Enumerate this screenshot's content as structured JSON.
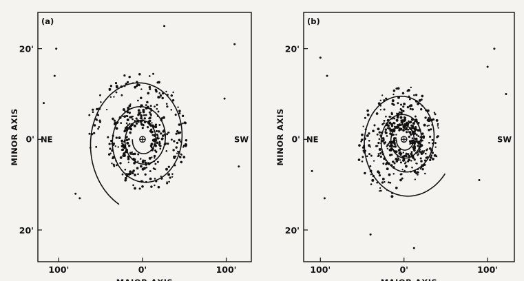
{
  "chart_data": [
    {
      "panel_label": "(a)",
      "type": "scatter",
      "xlabel": "MAJOR AXIS",
      "ylabel": "MINOR AXIS",
      "x_ticks": [
        "100'",
        "0'",
        "100'"
      ],
      "x_tick_values": [
        -100,
        0,
        100
      ],
      "y_ticks": [
        "20'",
        "0'",
        "20'"
      ],
      "y_tick_values": [
        20,
        0,
        -20
      ],
      "direction_left": "NE",
      "direction_right": "SW",
      "xlim": [
        -125,
        130
      ],
      "ylim": [
        -27,
        28
      ],
      "spiral": {
        "r0": 12,
        "b": 0.087,
        "theta_start": 0,
        "theta_end": 20.0
      },
      "dot_seed": 17,
      "dot_count": 430,
      "dot_spread": 3.2,
      "stray_dots": [
        [
          -103,
          20
        ],
        [
          -105,
          14
        ],
        [
          110,
          21
        ],
        [
          -80,
          -12
        ],
        [
          -75,
          -13
        ],
        [
          45,
          -27
        ],
        [
          26,
          25
        ],
        [
          98,
          9
        ],
        [
          115,
          -6
        ],
        [
          -118,
          8
        ]
      ]
    },
    {
      "panel_label": "(b)",
      "type": "scatter",
      "xlabel": "MAJOR AXIS",
      "ylabel": "MINOR AXIS",
      "x_ticks": [
        "100'",
        "0'",
        "100'"
      ],
      "x_tick_values": [
        -100,
        0,
        100
      ],
      "y_ticks": [
        "20'",
        "0'",
        "20'"
      ],
      "y_tick_values": [
        20,
        0,
        -20
      ],
      "direction_left": "NE",
      "direction_right": "SW",
      "xlim": [
        -120,
        132
      ],
      "ylim": [
        -27,
        28
      ],
      "spiral": {
        "r0": 9,
        "b": 0.088,
        "theta_start": 0,
        "theta_end": 21.4
      },
      "dot_seed": 29,
      "dot_count": 500,
      "dot_spread": 3.0,
      "stray_dots": [
        [
          -100,
          18
        ],
        [
          -92,
          14
        ],
        [
          108,
          20
        ],
        [
          100,
          16
        ],
        [
          -95,
          -13
        ],
        [
          12,
          -24
        ],
        [
          -40,
          -21
        ],
        [
          -110,
          -7
        ],
        [
          122,
          10
        ],
        [
          90,
          -9
        ]
      ]
    }
  ]
}
